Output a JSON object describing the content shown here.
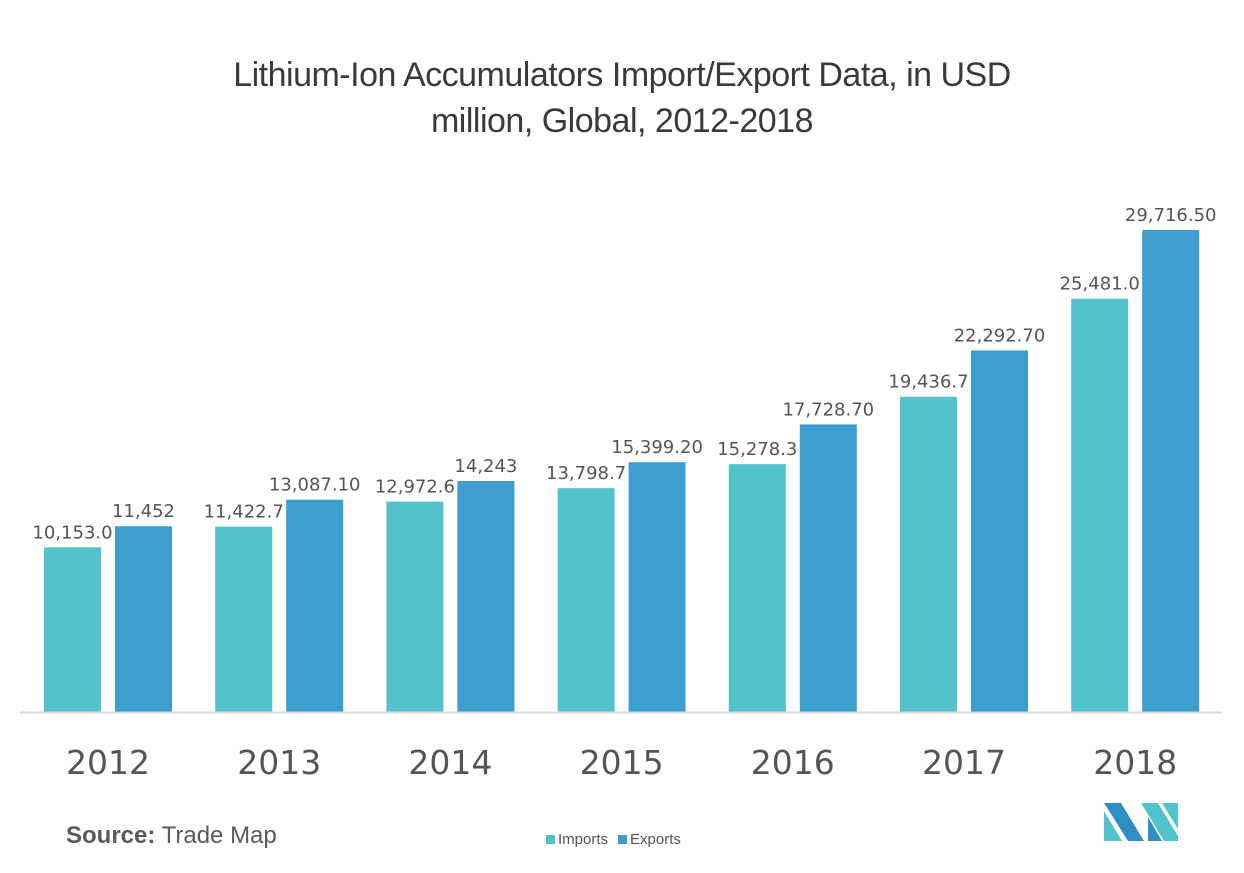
{
  "chart_data": {
    "type": "bar",
    "title": "Lithium-Ion Accumulators Import/Export Data, in USD million, Global, 2012-2018",
    "title_lines": [
      "Lithium-Ion Accumulators Import/Export Data, in USD",
      "million, Global, 2012-2018"
    ],
    "xlabel": "",
    "ylabel": "",
    "ylim": [
      0,
      29716.5
    ],
    "grid": false,
    "categories": [
      "2012",
      "2013",
      "2014",
      "2015",
      "2016",
      "2017",
      "2018"
    ],
    "series": [
      {
        "name": "Imports",
        "color": "#52c3cb",
        "values": [
          10153.0,
          11422.7,
          12972.6,
          13798.7,
          15278.3,
          19436.7,
          25481.0
        ],
        "labels": [
          "10,153.0",
          "11,422.7",
          "12,972.6",
          "13,798.7",
          "15,278.3",
          "19,436.7",
          "25,481.0"
        ]
      },
      {
        "name": "Exports",
        "color": "#3c9dce",
        "values": [
          11452,
          13087.1,
          14243,
          15399.2,
          17728.7,
          22292.7,
          29716.5
        ],
        "labels": [
          "11,452",
          "13,087.10",
          "14,243",
          "15,399.20",
          "17,728.70",
          "22,292.70",
          "29,716.50"
        ]
      }
    ],
    "legend": {
      "position": "bottom-center",
      "entries": [
        "Imports",
        "Exports"
      ]
    }
  },
  "footer": {
    "source_label": "Source:",
    "source_value": "Trade Map"
  },
  "logo": {
    "icon": "mordor-intelligence-logo-icon"
  }
}
